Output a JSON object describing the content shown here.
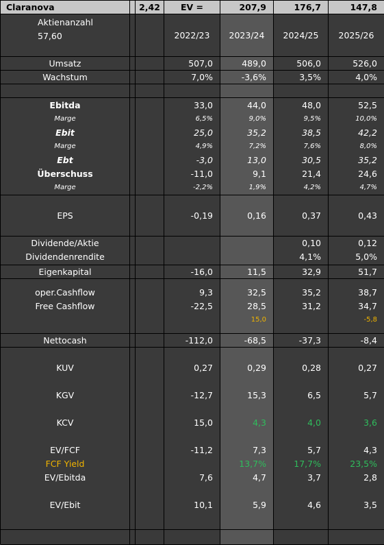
{
  "header": {
    "company": "Claranova",
    "price": "2,42",
    "ev_label": "EV =",
    "ev_values": [
      "207,9",
      "176,7",
      "147,8"
    ]
  },
  "shares": {
    "label": "Aktienanzahl",
    "value": "57,60"
  },
  "years": [
    "2022/23",
    "2023/24",
    "2024/25",
    "2025/26"
  ],
  "rows": {
    "umsatz": {
      "label": "Umsatz",
      "values": [
        "507,0",
        "489,0",
        "506,0",
        "526,0"
      ]
    },
    "wachstum": {
      "label": "Wachstum",
      "values": [
        "7,0%",
        "-3,6%",
        "3,5%",
        "4,0%"
      ]
    },
    "ebitda": {
      "label": "Ebitda",
      "values": [
        "33,0",
        "44,0",
        "48,0",
        "52,5"
      ]
    },
    "marge1": {
      "label": "Marge",
      "values": [
        "6,5%",
        "9,0%",
        "9,5%",
        "10,0%"
      ]
    },
    "ebit": {
      "label": "Ebit",
      "values": [
        "25,0",
        "35,2",
        "38,5",
        "42,2"
      ]
    },
    "marge2": {
      "label": "Marge",
      "values": [
        "4,9%",
        "7,2%",
        "7,6%",
        "8,0%"
      ]
    },
    "ebt": {
      "label": "Ebt",
      "values": [
        "-3,0",
        "13,0",
        "30,5",
        "35,2"
      ]
    },
    "ueberschuss": {
      "label": "Überschuss",
      "values": [
        "-11,0",
        "9,1",
        "21,4",
        "24,6"
      ]
    },
    "marge3": {
      "label": "Marge",
      "values": [
        "-2,2%",
        "1,9%",
        "4,2%",
        "4,7%"
      ]
    },
    "eps": {
      "label": "EPS",
      "values": [
        "-0,19",
        "0,16",
        "0,37",
        "0,43"
      ]
    },
    "dividende": {
      "label": "Dividende/Aktie",
      "values": [
        "",
        "",
        "0,10",
        "0,12"
      ]
    },
    "rendite": {
      "label": "Dividendenrendite",
      "values": [
        "",
        "",
        "4,1%",
        "5,0%"
      ]
    },
    "eigenkapital": {
      "label": "Eigenkapital",
      "values": [
        "-16,0",
        "11,5",
        "32,9",
        "51,7"
      ]
    },
    "opcf": {
      "label": "oper.Cashflow",
      "values": [
        "9,3",
        "32,5",
        "35,2",
        "38,7"
      ]
    },
    "fcf": {
      "label": "Free Cashflow",
      "values": [
        "-22,5",
        "28,5",
        "31,2",
        "34,7"
      ]
    },
    "fcf_note": {
      "values": [
        "",
        "15,0",
        "",
        "-5,8"
      ]
    },
    "nettocash": {
      "label": "Nettocash",
      "values": [
        "-112,0",
        "-68,5",
        "-37,3",
        "-8,4"
      ]
    },
    "kuv": {
      "label": "KUV",
      "values": [
        "0,27",
        "0,29",
        "0,28",
        "0,27"
      ]
    },
    "kgv": {
      "label": "KGV",
      "values": [
        "-12,7",
        "15,3",
        "6,5",
        "5,7"
      ]
    },
    "kcv": {
      "label": "KCV",
      "values": [
        "15,0",
        "4,3",
        "4,0",
        "3,6"
      ]
    },
    "evfcf": {
      "label": "EV/FCF",
      "values": [
        "-11,2",
        "7,3",
        "5,7",
        "4,3"
      ]
    },
    "fcfyield": {
      "label": "FCF Yield",
      "values": [
        "",
        "13,7%",
        "17,7%",
        "23,5%"
      ]
    },
    "evebitda": {
      "label": "EV/Ebitda",
      "values": [
        "7,6",
        "4,7",
        "3,7",
        "2,8"
      ]
    },
    "evebit": {
      "label": "EV/Ebit",
      "values": [
        "10,1",
        "5,9",
        "4,6",
        "3,5"
      ]
    }
  },
  "colors": {
    "background": "#3a3a3a",
    "highlight_column": "#575757",
    "header_bar": "#c7c7c7",
    "orange": "#f0b400",
    "green": "#2fbd5c"
  }
}
